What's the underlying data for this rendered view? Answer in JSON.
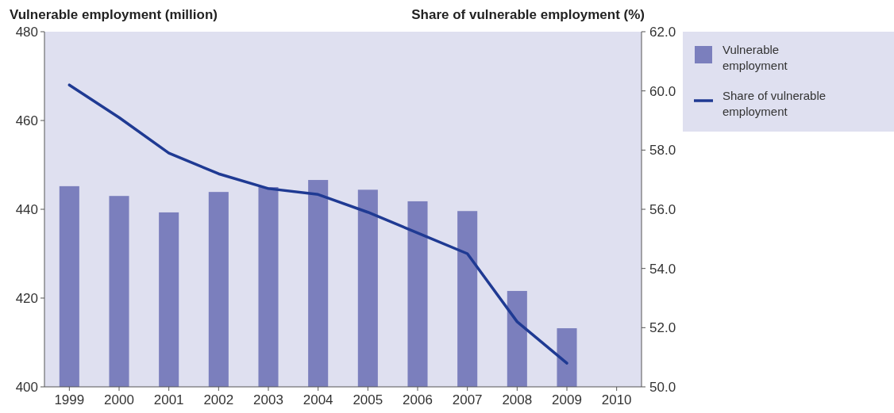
{
  "chart_data": {
    "type": "bar",
    "ylabel": "Vulnerable employment (million)",
    "y2label": "Share of vulnerable employment (%)",
    "categories": [
      "1999",
      "2000",
      "2001",
      "2002",
      "2003",
      "2004",
      "2005",
      "2006",
      "2007",
      "2008",
      "2009",
      "2010"
    ],
    "series": [
      {
        "name": "Vulnerable employment",
        "color": "#7b7fbd",
        "values": [
          445.2,
          443.0,
          439.3,
          443.9,
          445.0,
          446.6,
          444.4,
          441.8,
          439.6,
          421.6,
          413.2,
          null
        ]
      },
      {
        "name": "Share of vulnerable employment",
        "type": "line",
        "axis": "y2",
        "color": "#1f3a93",
        "values": [
          60.2,
          59.1,
          57.9,
          57.2,
          56.7,
          56.5,
          55.9,
          55.2,
          54.5,
          52.2,
          50.8,
          null
        ]
      }
    ],
    "ylim": [
      400,
      480
    ],
    "yticks": [
      400,
      420,
      440,
      460,
      480
    ],
    "y2lim": [
      50,
      62
    ],
    "y2ticks": [
      {
        "value": 50,
        "label": "50.0"
      },
      {
        "value": 52,
        "label": "52.0"
      },
      {
        "value": 54,
        "label": "54.0"
      },
      {
        "value": 56,
        "label": "56.0"
      },
      {
        "value": 58,
        "label": "58.0"
      },
      {
        "value": 60,
        "label": "60.0"
      },
      {
        "value": 62,
        "label": "62.0"
      }
    ],
    "legend": "right",
    "marker": "none",
    "line_style": "solid"
  }
}
